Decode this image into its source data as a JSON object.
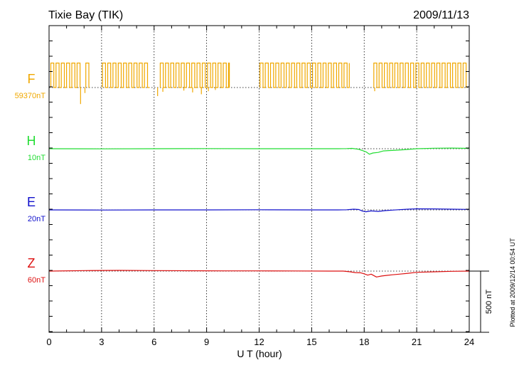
{
  "chart_data": {
    "type": "line",
    "title": "Tixie Bay (TIK)",
    "date": "2009/11/13",
    "xlabel": "U T (hour)",
    "xlim": [
      0,
      24
    ],
    "xticks": [
      "0",
      "3",
      "6",
      "9",
      "12",
      "15",
      "18",
      "21",
      "24"
    ],
    "scale_bar_label": "500 nT",
    "plotted_note": "Plotted at 2009/12/14 00:54 UT",
    "grid": true,
    "series": [
      {
        "name": "F",
        "baseline_label": "59370nT",
        "color": "#f0a800",
        "type": "square-wave",
        "upper_level_nT": 200,
        "lower_level_nT": 0,
        "active_ranges_hours": [
          [
            0.1,
            1.8
          ],
          [
            2.1,
            2.3
          ],
          [
            3.05,
            5.75
          ],
          [
            6.35,
            10.3
          ],
          [
            12.05,
            17.15
          ],
          [
            18.55,
            23.85
          ]
        ],
        "period_hours": 0.3,
        "spikes": [
          {
            "x": 1.8,
            "y": -135
          },
          {
            "x": 2.05,
            "y": -45
          },
          {
            "x": 6.2,
            "y": -70
          },
          {
            "x": 6.5,
            "y": -35
          },
          {
            "x": 7.7,
            "y": -25
          },
          {
            "x": 8.2,
            "y": -40
          },
          {
            "x": 8.7,
            "y": -55
          },
          {
            "x": 9.1,
            "y": -30
          },
          {
            "x": 9.5,
            "y": -20
          },
          {
            "x": 18.6,
            "y": -30
          }
        ]
      },
      {
        "name": "H",
        "baseline_label": "10nT",
        "color": "#22dd33",
        "x": [
          0,
          3,
          6,
          9,
          12,
          15,
          16.5,
          17.0,
          17.3,
          17.7,
          17.9,
          18.1,
          18.3,
          18.5,
          18.8,
          19.1,
          19.4,
          19.8,
          20.3,
          21.0,
          22.0,
          23.0,
          24.0
        ],
        "y": [
          0,
          -1,
          0,
          1,
          0,
          0,
          0,
          1,
          3,
          -5,
          -15,
          -25,
          -45,
          -35,
          -30,
          -18,
          -15,
          -12,
          -8,
          0,
          4,
          5,
          3
        ]
      },
      {
        "name": "E",
        "baseline_label": "20nT",
        "color": "#1010cc",
        "x": [
          0,
          3,
          6,
          9,
          12,
          15,
          16.5,
          17.0,
          17.4,
          17.7,
          17.9,
          18.1,
          18.4,
          18.8,
          19.2,
          19.6,
          20.0,
          20.5,
          21.0,
          22.0,
          23.0,
          24.0
        ],
        "y": [
          0,
          -1,
          0,
          0,
          1,
          0,
          0,
          1,
          6,
          3,
          -10,
          -15,
          -8,
          -12,
          -6,
          -2,
          2,
          6,
          9,
          8,
          6,
          4
        ]
      },
      {
        "name": "Z",
        "baseline_label": "60nT",
        "color": "#dd1111",
        "x": [
          0,
          2,
          4,
          6,
          8,
          10,
          12,
          14,
          16,
          16.8,
          17.2,
          17.5,
          17.8,
          18.0,
          18.2,
          18.4,
          18.7,
          19.0,
          19.3,
          19.6,
          20.0,
          20.5,
          21.0,
          22.0,
          23.0,
          24.0
        ],
        "y": [
          0,
          4,
          6,
          4,
          3,
          2,
          2,
          1,
          0,
          0,
          -6,
          -12,
          -14,
          -22,
          -33,
          -25,
          -48,
          -40,
          -35,
          -30,
          -25,
          -18,
          -10,
          -6,
          -2,
          0
        ]
      }
    ]
  }
}
